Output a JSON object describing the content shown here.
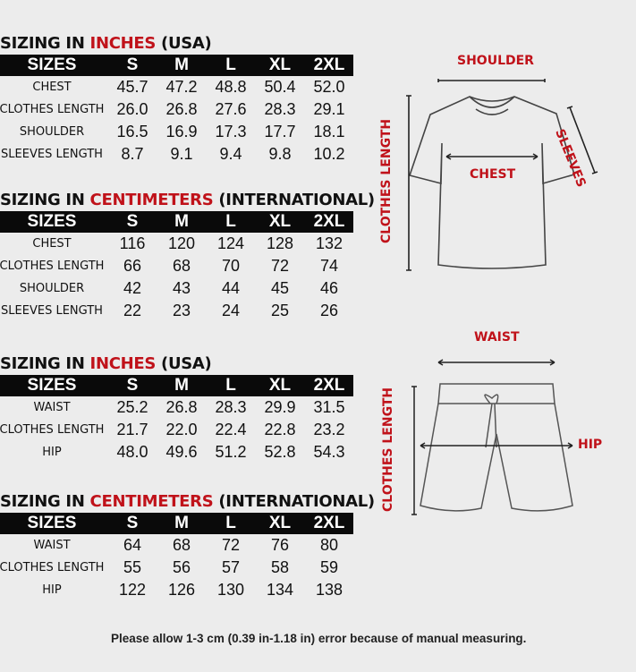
{
  "tables": [
    {
      "title_pre": "SIZING IN ",
      "title_hl": "INCHES",
      "title_post": " (USA)",
      "headers": [
        "SIZES",
        "S",
        "M",
        "L",
        "XL",
        "2XL"
      ],
      "rows": [
        [
          "CHEST",
          "45.7",
          "47.2",
          "48.8",
          "50.4",
          "52.0"
        ],
        [
          "CLOTHES LENGTH",
          "26.0",
          "26.8",
          "27.6",
          "28.3",
          "29.1"
        ],
        [
          "SHOULDER",
          "16.5",
          "16.9",
          "17.3",
          "17.7",
          "18.1"
        ],
        [
          "SLEEVES LENGTH",
          "8.7",
          "9.1",
          "9.4",
          "9.8",
          "10.2"
        ]
      ]
    },
    {
      "title_pre": "SIZING IN ",
      "title_hl": "CENTIMETERS",
      "title_post": " (INTERNATIONAL)",
      "headers": [
        "SIZES",
        "S",
        "M",
        "L",
        "XL",
        "2XL"
      ],
      "rows": [
        [
          "CHEST",
          "116",
          "120",
          "124",
          "128",
          "132"
        ],
        [
          "CLOTHES LENGTH",
          "66",
          "68",
          "70",
          "72",
          "74"
        ],
        [
          "SHOULDER",
          "42",
          "43",
          "44",
          "45",
          "46"
        ],
        [
          "SLEEVES LENGTH",
          "22",
          "23",
          "24",
          "25",
          "26"
        ]
      ]
    },
    {
      "title_pre": "SIZING IN ",
      "title_hl": "INCHES",
      "title_post": " (USA)",
      "headers": [
        "SIZES",
        "S",
        "M",
        "L",
        "XL",
        "2XL"
      ],
      "rows": [
        [
          "WAIST",
          "25.2",
          "26.8",
          "28.3",
          "29.9",
          "31.5"
        ],
        [
          "CLOTHES LENGTH",
          "21.7",
          "22.0",
          "22.4",
          "22.8",
          "23.2"
        ],
        [
          "HIP",
          "48.0",
          "49.6",
          "51.2",
          "52.8",
          "54.3"
        ]
      ]
    },
    {
      "title_pre": "SIZING IN ",
      "title_hl": "CENTIMETERS",
      "title_post": " (INTERNATIONAL)",
      "headers": [
        "SIZES",
        "S",
        "M",
        "L",
        "XL",
        "2XL"
      ],
      "rows": [
        [
          "WAIST",
          "64",
          "68",
          "72",
          "76",
          "80"
        ],
        [
          "CLOTHES LENGTH",
          "55",
          "56",
          "57",
          "58",
          "59"
        ],
        [
          "HIP",
          "122",
          "126",
          "130",
          "134",
          "138"
        ]
      ]
    }
  ],
  "shirt_diagram": {
    "shoulder": "SHOULDER",
    "sleeves": "SLEEVES",
    "chest": "CHEST",
    "clothes_length": "CLOTHES LENGTH"
  },
  "shorts_diagram": {
    "waist": "WAIST",
    "hip": "HIP",
    "clothes_length": "CLOTHES LENGTH"
  },
  "footer": "Please allow 1-3 cm (0.39 in-1.18 in) error because of manual measuring.",
  "colors": {
    "accent": "#c0121a",
    "header_bg": "#0a0a0a",
    "background": "#ececec"
  }
}
